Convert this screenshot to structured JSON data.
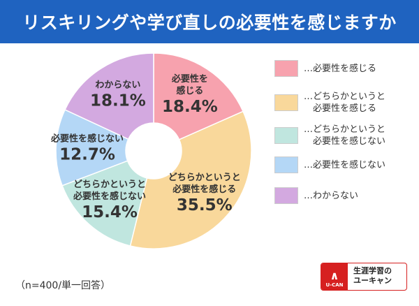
{
  "header": {
    "title": "リスキリングや学び直しの必要性を感じますか"
  },
  "chart_data": {
    "type": "pie",
    "donut": true,
    "title": "リスキリングや学び直しの必要性を感じますか",
    "start": "top",
    "direction": "clockwise",
    "legend_position": "right",
    "slices": [
      {
        "label": "必要性を感じる",
        "chart_label": "必要性を\n感じる",
        "value": 18.4,
        "value_text": "18.4%",
        "color": "#f7a2ae"
      },
      {
        "label": "どちらかというと\n必要性を感じる",
        "chart_label": "どちらかというと\n必要性を感じる",
        "value": 35.5,
        "value_text": "35.5%",
        "color": "#f9d89b"
      },
      {
        "label": "どちらかというと\n必要性を感じない",
        "chart_label": "どちらかというと\n必要性を感じない",
        "value": 15.4,
        "value_text": "15.4%",
        "color": "#c0e6df"
      },
      {
        "label": "必要性を感じない",
        "chart_label": "必要性を感じない",
        "value": 12.7,
        "value_text": "12.7%",
        "color": "#b4d7f6"
      },
      {
        "label": "わからない",
        "chart_label": "わからない",
        "value": 18.1,
        "value_text": "18.1%",
        "color": "#d3a9e0"
      }
    ],
    "legend_prefix": "…"
  },
  "note": "（n=400/単一回答）",
  "logo": {
    "mark_text": "U-CAN",
    "line1": "生涯学習の",
    "line2": "ユーキャン",
    "color": "#d62020"
  }
}
